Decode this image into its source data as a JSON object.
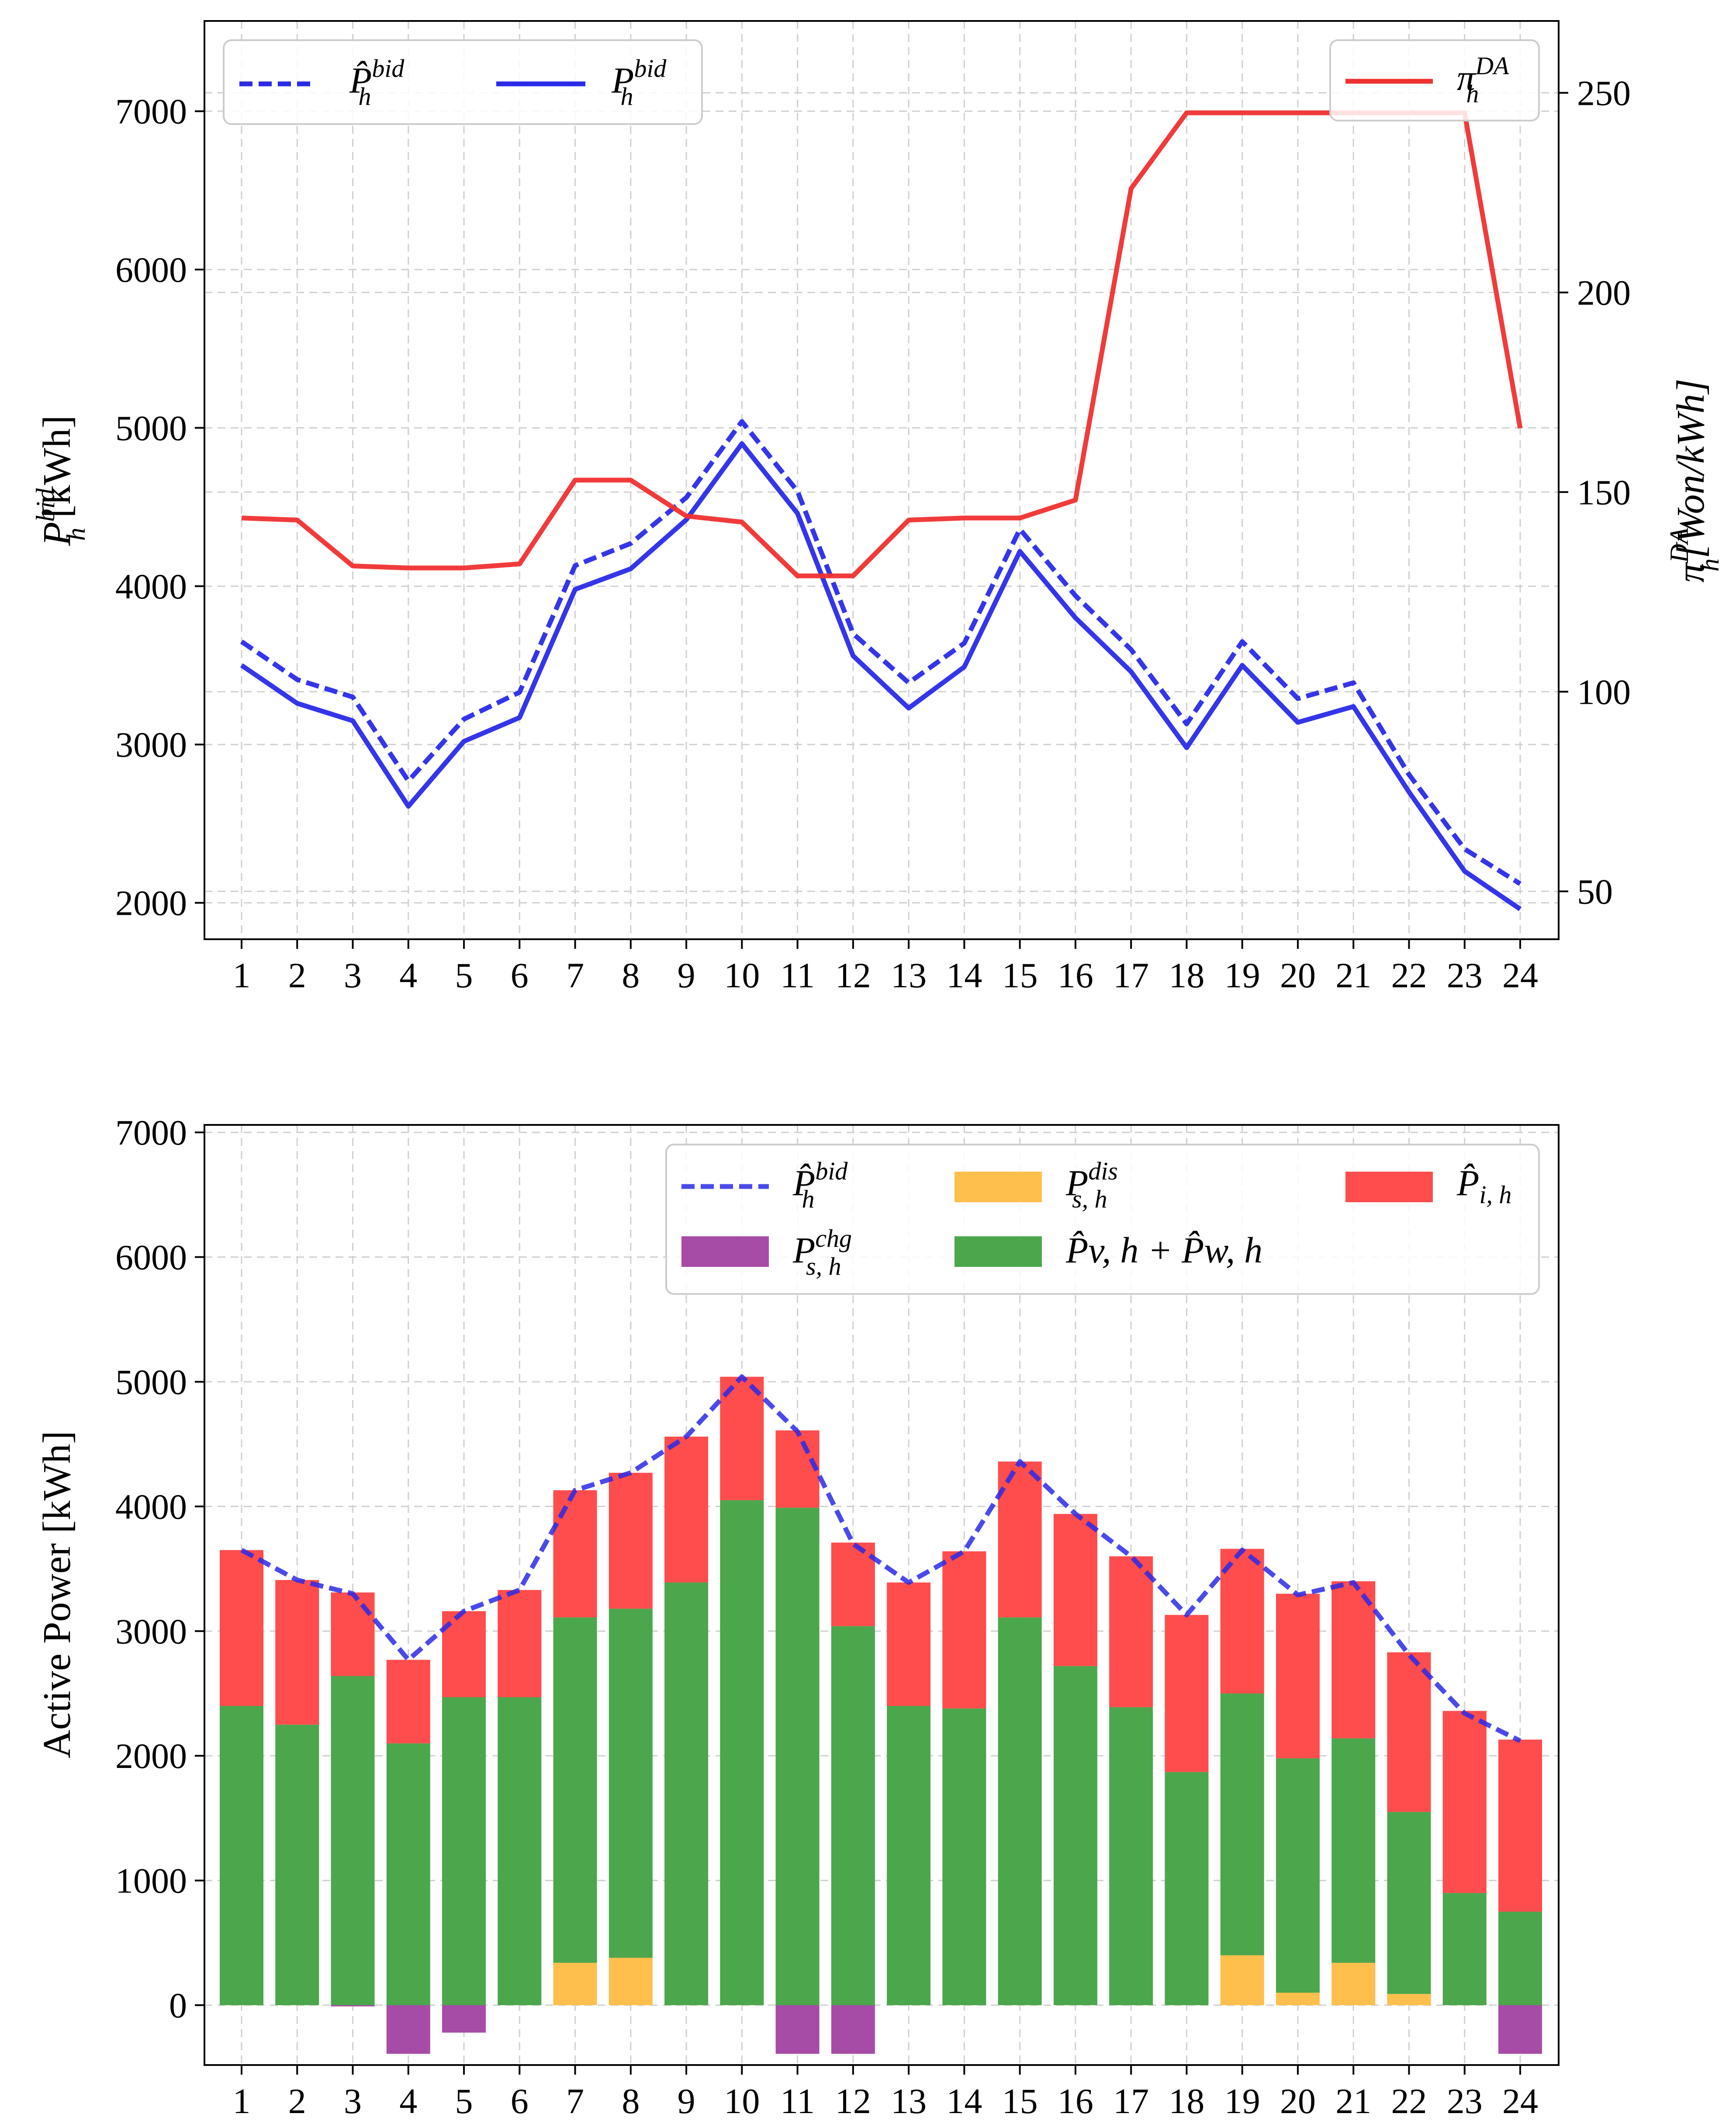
{
  "colors": {
    "bid_line": "#2a2ae8",
    "price_line": "#f03030",
    "charge": "#a64ca6",
    "discharge": "#ffbf4c",
    "renewable": "#4ca64c",
    "import": "#ff4c4c"
  },
  "chart_data": [
    {
      "type": "line",
      "hours": [
        "1",
        "2",
        "3",
        "4",
        "5",
        "6",
        "7",
        "8",
        "9",
        "10",
        "11",
        "12",
        "13",
        "14",
        "15",
        "16",
        "17",
        "18",
        "19",
        "20",
        "21",
        "22",
        "23",
        "24"
      ],
      "ylabel": "P_h^bid [kWh]",
      "ylabel_parts": {
        "base": "P",
        "sub": "h",
        "sup": "bid",
        "unit": " [kWh]"
      },
      "y2label": "π_h^DA[Won/kWh]",
      "y2label_parts": {
        "base": "π",
        "sub": "h",
        "sup": "DA",
        "unit": "[Won/kWh]"
      },
      "ylim": [
        1770,
        7570
      ],
      "y2lim": [
        38,
        268
      ],
      "yticks": [
        2000,
        3000,
        4000,
        5000,
        6000,
        7000
      ],
      "y2ticks": [
        50,
        100,
        150,
        200,
        250
      ],
      "grid": true,
      "series": [
        {
          "name": "P̂_h^bid",
          "legend_parts": {
            "base": "P̂",
            "sub": "h",
            "sup": "bid"
          },
          "axis": "left",
          "style": "dashed",
          "values": [
            3650,
            3410,
            3300,
            2770,
            3160,
            3330,
            4130,
            4270,
            4560,
            5040,
            4600,
            3700,
            3390,
            3640,
            4360,
            3940,
            3600,
            3130,
            3650,
            3290,
            3390,
            2810,
            2340,
            2120
          ]
        },
        {
          "name": "P_h^bid",
          "legend_parts": {
            "base": "P",
            "sub": "h",
            "sup": "bid"
          },
          "axis": "left",
          "style": "solid",
          "values": [
            3500,
            3260,
            3150,
            2610,
            3020,
            3170,
            3980,
            4110,
            4420,
            4900,
            4460,
            3560,
            3230,
            3490,
            4220,
            3800,
            3460,
            2980,
            3500,
            3140,
            3240,
            2700,
            2200,
            1960
          ]
        },
        {
          "name": "π_h^DA",
          "legend_parts": {
            "base": "π",
            "sub": "h",
            "sup": "DA"
          },
          "axis": "right",
          "style": "solid",
          "values": [
            143.5,
            143,
            131.5,
            131,
            131,
            132,
            153,
            153,
            144,
            142.5,
            129,
            129,
            143,
            143.5,
            143.5,
            148,
            226,
            245,
            245,
            245,
            245,
            245,
            245,
            166
          ]
        }
      ],
      "legend_placement": [
        "upper-left",
        "upper-right"
      ]
    },
    {
      "type": "bar",
      "stacked": true,
      "hours": [
        "1",
        "2",
        "3",
        "4",
        "5",
        "6",
        "7",
        "8",
        "9",
        "10",
        "11",
        "12",
        "13",
        "14",
        "15",
        "16",
        "17",
        "18",
        "19",
        "20",
        "21",
        "22",
        "23",
        "24"
      ],
      "ylabel": "Active Power  [kWh]",
      "ylim": [
        -480,
        7060
      ],
      "yticks": [
        0,
        1000,
        2000,
        3000,
        4000,
        5000,
        6000,
        7000
      ],
      "grid": true,
      "legend_placement": "upper-right",
      "series": [
        {
          "name": "P̂_h^bid",
          "legend_parts": {
            "base": "P̂",
            "sub": "h",
            "sup": "bid"
          },
          "type": "line",
          "style": "dashed",
          "values": [
            3650,
            3410,
            3300,
            2770,
            3160,
            3330,
            4130,
            4270,
            4560,
            5040,
            4600,
            3700,
            3390,
            3640,
            4360,
            3940,
            3600,
            3130,
            3650,
            3290,
            3390,
            2810,
            2340,
            2120
          ]
        },
        {
          "name": "P_s,h^chg",
          "legend_parts": {
            "base": "P",
            "sub": "s, h",
            "sup": "chg"
          },
          "type": "bar",
          "values": [
            0,
            0,
            -10,
            -390,
            -220,
            0,
            0,
            0,
            0,
            0,
            -390,
            -390,
            0,
            0,
            0,
            0,
            0,
            0,
            0,
            0,
            0,
            0,
            0,
            -390
          ]
        },
        {
          "name": "P_s,h^dis",
          "legend_parts": {
            "base": "P",
            "sub": "s, h",
            "sup": "dis"
          },
          "type": "bar",
          "values": [
            0,
            0,
            0,
            0,
            0,
            0,
            340,
            380,
            0,
            0,
            0,
            0,
            0,
            0,
            0,
            0,
            0,
            0,
            400,
            100,
            340,
            90,
            0,
            0
          ]
        },
        {
          "name": "P̂_v,h + P̂_w,h",
          "legend_parts": {
            "text": "P̂v, h + P̂w, h"
          },
          "type": "bar",
          "values": [
            2400,
            2250,
            2640,
            2100,
            2470,
            2470,
            2770,
            2800,
            3390,
            4050,
            3990,
            3040,
            2400,
            2380,
            3110,
            2720,
            2390,
            1870,
            2100,
            1880,
            1800,
            1460,
            900,
            750
          ]
        },
        {
          "name": "P̂_i,h",
          "legend_parts": {
            "base": "P̂",
            "sub": "i, h",
            "sup": ""
          },
          "type": "bar",
          "values": [
            1250,
            1160,
            670,
            670,
            690,
            860,
            1020,
            1090,
            1170,
            990,
            620,
            670,
            990,
            1260,
            1250,
            1220,
            1210,
            1260,
            1160,
            1320,
            1260,
            1280,
            1460,
            1380
          ]
        }
      ]
    }
  ]
}
